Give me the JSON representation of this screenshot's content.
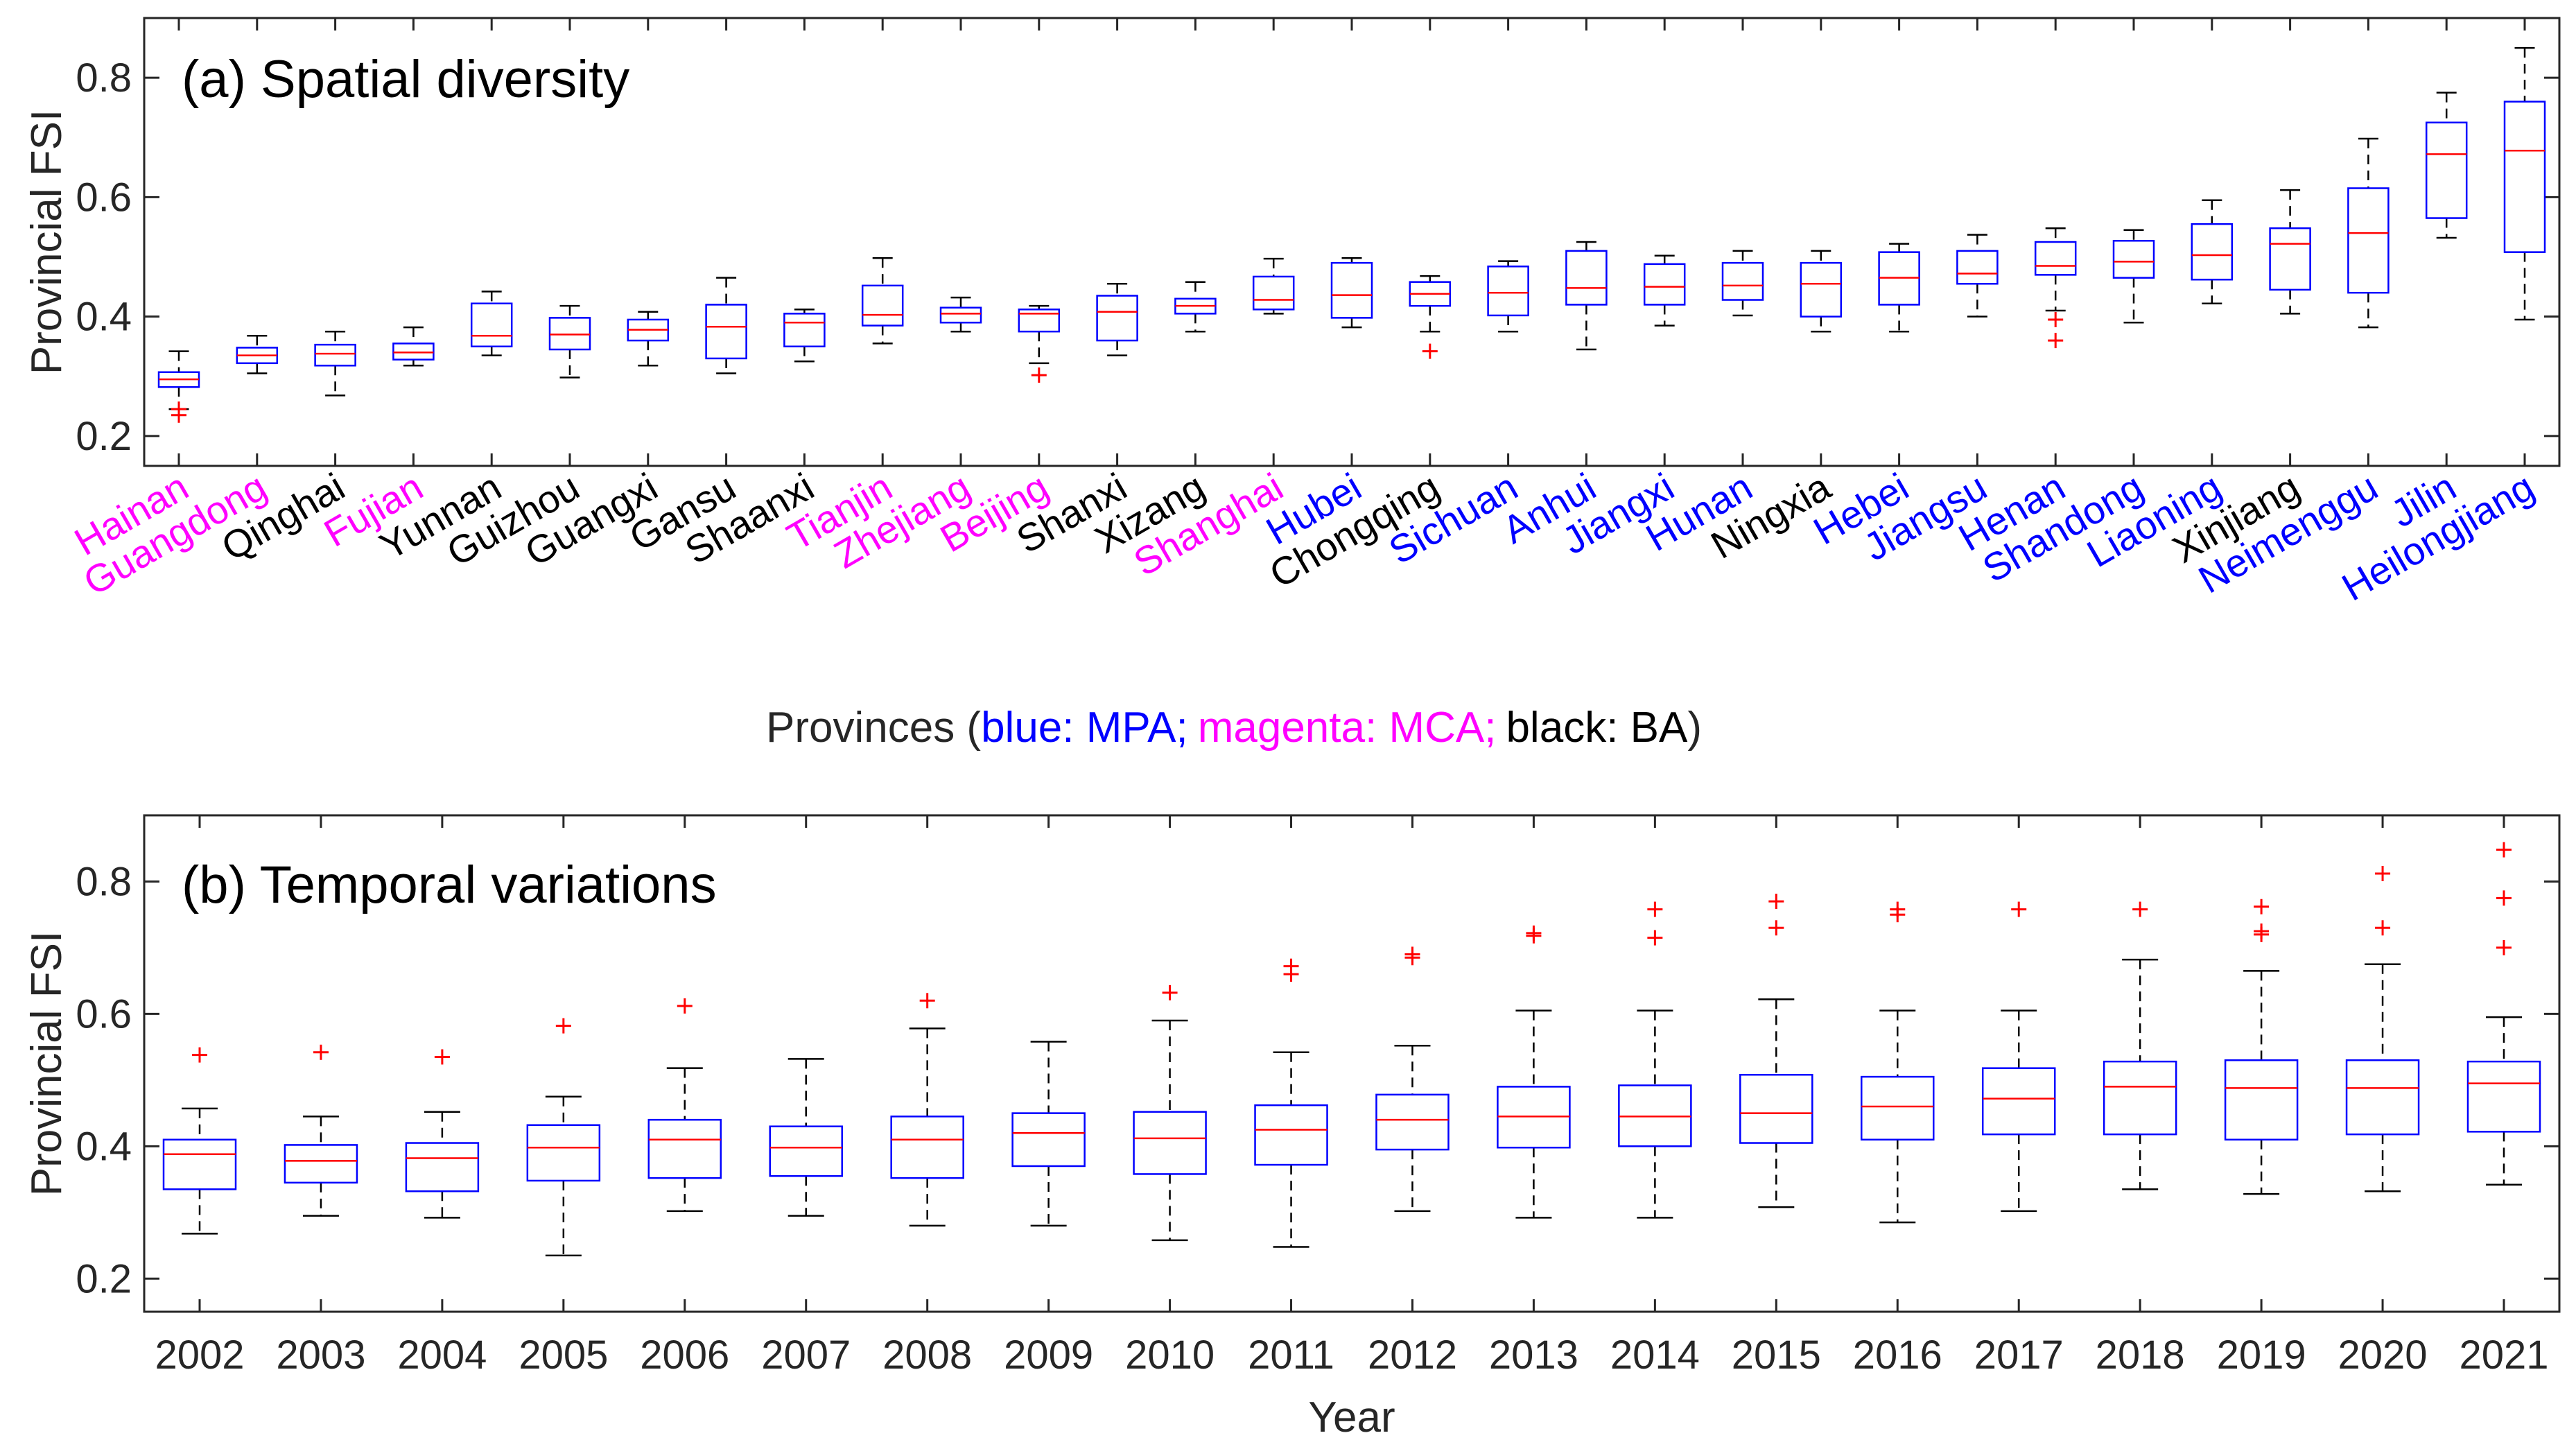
{
  "colors": {
    "mpa": "#0000FF",
    "mca": "#FF00FF",
    "ba": "#000000",
    "box": "#0000FF",
    "median": "#FF0000",
    "outlier": "#FF0000",
    "whisker": "#000000",
    "axis": "#262626"
  },
  "chart_data": [
    {
      "type": "box",
      "title": "(a) Spatial diversity",
      "ylabel": "Provincial FSI",
      "xlabel": {
        "prefix": "Provinces (",
        "mpa": "blue: MPA;",
        "mca": "magenta: MCA;",
        "ba": "black: BA",
        "suffix": ")"
      },
      "ylim": [
        0.15,
        0.9
      ],
      "yticks": [
        0.2,
        0.4,
        0.6,
        0.8
      ],
      "ytick_labels": [
        "0.2",
        "0.4",
        "0.6",
        "0.8"
      ],
      "categories": [
        {
          "name": "Hainan",
          "group": "MCA",
          "min": 0.245,
          "q1": 0.282,
          "median": 0.295,
          "q3": 0.307,
          "max": 0.342,
          "outliers": [
            0.245,
            0.235
          ]
        },
        {
          "name": "Guangdong",
          "group": "MCA",
          "min": 0.305,
          "q1": 0.322,
          "median": 0.335,
          "q3": 0.348,
          "max": 0.368,
          "outliers": []
        },
        {
          "name": "Qinghai",
          "group": "BA",
          "min": 0.268,
          "q1": 0.318,
          "median": 0.338,
          "q3": 0.353,
          "max": 0.375,
          "outliers": []
        },
        {
          "name": "Fujian",
          "group": "MCA",
          "min": 0.318,
          "q1": 0.328,
          "median": 0.34,
          "q3": 0.355,
          "max": 0.382,
          "outliers": []
        },
        {
          "name": "Yunnan",
          "group": "BA",
          "min": 0.335,
          "q1": 0.35,
          "median": 0.368,
          "q3": 0.422,
          "max": 0.442,
          "outliers": []
        },
        {
          "name": "Guizhou",
          "group": "BA",
          "min": 0.298,
          "q1": 0.345,
          "median": 0.37,
          "q3": 0.398,
          "max": 0.418,
          "outliers": []
        },
        {
          "name": "Guangxi",
          "group": "BA",
          "min": 0.318,
          "q1": 0.36,
          "median": 0.378,
          "q3": 0.395,
          "max": 0.408,
          "outliers": []
        },
        {
          "name": "Gansu",
          "group": "BA",
          "min": 0.305,
          "q1": 0.33,
          "median": 0.383,
          "q3": 0.42,
          "max": 0.465,
          "outliers": []
        },
        {
          "name": "Shaanxi",
          "group": "BA",
          "min": 0.325,
          "q1": 0.35,
          "median": 0.39,
          "q3": 0.405,
          "max": 0.412,
          "outliers": []
        },
        {
          "name": "Tianjin",
          "group": "MCA",
          "min": 0.355,
          "q1": 0.385,
          "median": 0.403,
          "q3": 0.452,
          "max": 0.498,
          "outliers": []
        },
        {
          "name": "Zhejiang",
          "group": "MCA",
          "min": 0.375,
          "q1": 0.39,
          "median": 0.405,
          "q3": 0.415,
          "max": 0.432,
          "outliers": []
        },
        {
          "name": "Beijing",
          "group": "MCA",
          "min": 0.322,
          "q1": 0.375,
          "median": 0.405,
          "q3": 0.412,
          "max": 0.418,
          "outliers": [
            0.302
          ]
        },
        {
          "name": "Shanxi",
          "group": "BA",
          "min": 0.335,
          "q1": 0.36,
          "median": 0.408,
          "q3": 0.435,
          "max": 0.455,
          "outliers": []
        },
        {
          "name": "Xizang",
          "group": "BA",
          "min": 0.375,
          "q1": 0.405,
          "median": 0.418,
          "q3": 0.43,
          "max": 0.458,
          "outliers": []
        },
        {
          "name": "Shanghai",
          "group": "MCA",
          "min": 0.405,
          "q1": 0.412,
          "median": 0.428,
          "q3": 0.467,
          "max": 0.497,
          "outliers": []
        },
        {
          "name": "Hubei",
          "group": "MPA",
          "min": 0.382,
          "q1": 0.398,
          "median": 0.436,
          "q3": 0.49,
          "max": 0.498,
          "outliers": []
        },
        {
          "name": "Chongqing",
          "group": "BA",
          "min": 0.375,
          "q1": 0.418,
          "median": 0.438,
          "q3": 0.458,
          "max": 0.468,
          "outliers": [
            0.342
          ]
        },
        {
          "name": "Sichuan",
          "group": "MPA",
          "min": 0.375,
          "q1": 0.402,
          "median": 0.44,
          "q3": 0.484,
          "max": 0.493,
          "outliers": []
        },
        {
          "name": "Anhui",
          "group": "MPA",
          "min": 0.345,
          "q1": 0.42,
          "median": 0.448,
          "q3": 0.51,
          "max": 0.525,
          "outliers": []
        },
        {
          "name": "Jiangxi",
          "group": "MPA",
          "min": 0.385,
          "q1": 0.42,
          "median": 0.45,
          "q3": 0.488,
          "max": 0.502,
          "outliers": []
        },
        {
          "name": "Hunan",
          "group": "MPA",
          "min": 0.402,
          "q1": 0.428,
          "median": 0.452,
          "q3": 0.49,
          "max": 0.51,
          "outliers": []
        },
        {
          "name": "Ningxia",
          "group": "BA",
          "min": 0.375,
          "q1": 0.4,
          "median": 0.455,
          "q3": 0.49,
          "max": 0.51,
          "outliers": []
        },
        {
          "name": "Hebei",
          "group": "MPA",
          "min": 0.375,
          "q1": 0.42,
          "median": 0.465,
          "q3": 0.508,
          "max": 0.522,
          "outliers": []
        },
        {
          "name": "Jiangsu",
          "group": "MPA",
          "min": 0.4,
          "q1": 0.455,
          "median": 0.472,
          "q3": 0.51,
          "max": 0.537,
          "outliers": []
        },
        {
          "name": "Henan",
          "group": "MPA",
          "min": 0.41,
          "q1": 0.47,
          "median": 0.485,
          "q3": 0.525,
          "max": 0.548,
          "outliers": [
            0.395,
            0.36
          ]
        },
        {
          "name": "Shandong",
          "group": "MPA",
          "min": 0.39,
          "q1": 0.465,
          "median": 0.492,
          "q3": 0.527,
          "max": 0.545,
          "outliers": []
        },
        {
          "name": "Liaoning",
          "group": "MPA",
          "min": 0.422,
          "q1": 0.462,
          "median": 0.503,
          "q3": 0.555,
          "max": 0.595,
          "outliers": []
        },
        {
          "name": "Xinjiang",
          "group": "BA",
          "min": 0.405,
          "q1": 0.445,
          "median": 0.522,
          "q3": 0.548,
          "max": 0.612,
          "outliers": []
        },
        {
          "name": "Neimenggu",
          "group": "MPA",
          "min": 0.382,
          "q1": 0.44,
          "median": 0.54,
          "q3": 0.615,
          "max": 0.698,
          "outliers": []
        },
        {
          "name": "Jilin",
          "group": "MPA",
          "min": 0.532,
          "q1": 0.565,
          "median": 0.672,
          "q3": 0.725,
          "max": 0.775,
          "outliers": []
        },
        {
          "name": "Heilongjiang",
          "group": "MPA",
          "min": 0.395,
          "q1": 0.508,
          "median": 0.678,
          "q3": 0.76,
          "max": 0.85,
          "outliers": []
        }
      ]
    },
    {
      "type": "box",
      "title": "(b) Temporal variations",
      "ylabel": "Provincial FSI",
      "xlabel": "Year",
      "ylim": [
        0.15,
        0.9
      ],
      "yticks": [
        0.2,
        0.4,
        0.6,
        0.8
      ],
      "ytick_labels": [
        "0.2",
        "0.4",
        "0.6",
        "0.8"
      ],
      "categories": [
        {
          "name": "2002",
          "min": 0.268,
          "q1": 0.335,
          "median": 0.388,
          "q3": 0.41,
          "max": 0.457,
          "outliers": [
            0.538
          ]
        },
        {
          "name": "2003",
          "min": 0.295,
          "q1": 0.345,
          "median": 0.378,
          "q3": 0.402,
          "max": 0.445,
          "outliers": [
            0.542
          ]
        },
        {
          "name": "2004",
          "min": 0.292,
          "q1": 0.332,
          "median": 0.382,
          "q3": 0.405,
          "max": 0.452,
          "outliers": [
            0.535
          ]
        },
        {
          "name": "2005",
          "min": 0.235,
          "q1": 0.348,
          "median": 0.398,
          "q3": 0.432,
          "max": 0.475,
          "outliers": [
            0.582
          ]
        },
        {
          "name": "2006",
          "min": 0.302,
          "q1": 0.352,
          "median": 0.41,
          "q3": 0.44,
          "max": 0.518,
          "outliers": [
            0.612
          ]
        },
        {
          "name": "2007",
          "min": 0.295,
          "q1": 0.355,
          "median": 0.398,
          "q3": 0.43,
          "max": 0.532,
          "outliers": []
        },
        {
          "name": "2008",
          "min": 0.28,
          "q1": 0.352,
          "median": 0.41,
          "q3": 0.445,
          "max": 0.578,
          "outliers": [
            0.62
          ]
        },
        {
          "name": "2009",
          "min": 0.28,
          "q1": 0.37,
          "median": 0.42,
          "q3": 0.45,
          "max": 0.558,
          "outliers": []
        },
        {
          "name": "2010",
          "min": 0.258,
          "q1": 0.358,
          "median": 0.412,
          "q3": 0.452,
          "max": 0.59,
          "outliers": [
            0.632
          ]
        },
        {
          "name": "2011",
          "min": 0.248,
          "q1": 0.372,
          "median": 0.425,
          "q3": 0.462,
          "max": 0.542,
          "outliers": [
            0.66,
            0.672
          ]
        },
        {
          "name": "2012",
          "min": 0.302,
          "q1": 0.395,
          "median": 0.44,
          "q3": 0.478,
          "max": 0.552,
          "outliers": [
            0.685,
            0.69
          ]
        },
        {
          "name": "2013",
          "min": 0.292,
          "q1": 0.398,
          "median": 0.445,
          "q3": 0.49,
          "max": 0.605,
          "outliers": [
            0.718,
            0.722
          ]
        },
        {
          "name": "2014",
          "min": 0.292,
          "q1": 0.4,
          "median": 0.445,
          "q3": 0.492,
          "max": 0.605,
          "outliers": [
            0.715,
            0.758
          ]
        },
        {
          "name": "2015",
          "min": 0.308,
          "q1": 0.405,
          "median": 0.45,
          "q3": 0.508,
          "max": 0.622,
          "outliers": [
            0.73,
            0.77
          ]
        },
        {
          "name": "2016",
          "min": 0.285,
          "q1": 0.41,
          "median": 0.46,
          "q3": 0.505,
          "max": 0.605,
          "outliers": [
            0.75,
            0.758
          ]
        },
        {
          "name": "2017",
          "min": 0.302,
          "q1": 0.418,
          "median": 0.472,
          "q3": 0.518,
          "max": 0.605,
          "outliers": [
            0.758
          ]
        },
        {
          "name": "2018",
          "min": 0.335,
          "q1": 0.418,
          "median": 0.49,
          "q3": 0.528,
          "max": 0.682,
          "outliers": [
            0.758
          ]
        },
        {
          "name": "2019",
          "min": 0.328,
          "q1": 0.41,
          "median": 0.488,
          "q3": 0.53,
          "max": 0.665,
          "outliers": [
            0.72,
            0.725,
            0.762
          ]
        },
        {
          "name": "2020",
          "min": 0.332,
          "q1": 0.418,
          "median": 0.488,
          "q3": 0.53,
          "max": 0.675,
          "outliers": [
            0.73,
            0.812
          ]
        },
        {
          "name": "2021",
          "min": 0.342,
          "q1": 0.422,
          "median": 0.495,
          "q3": 0.528,
          "max": 0.595,
          "outliers": [
            0.7,
            0.775,
            0.848
          ]
        }
      ]
    }
  ]
}
